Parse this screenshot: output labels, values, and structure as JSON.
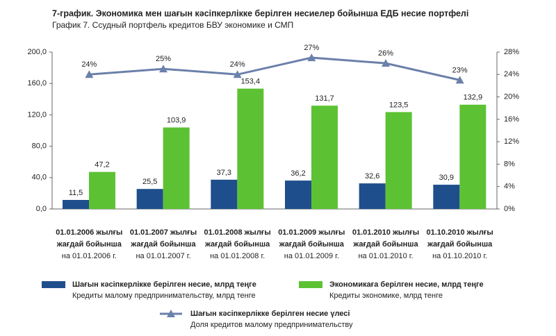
{
  "chart_data": {
    "type": "bar",
    "title": "7-график. Экономика мен шағын кәсіпкерлікке берілген несиелер бойынша ЕДБ несие портфелі",
    "subtitle": "График 7. Ссудный портфель кредитов БВУ экономике и СМП",
    "categories": [
      [
        "01.01.2006 жылғы",
        "жағдай бойынша",
        "на 01.01.2006 г."
      ],
      [
        "01.01.2007 жылғы",
        "жағдай бойынша",
        "на 01.01.2007 г."
      ],
      [
        "01.01.2008 жылғы",
        "жағдай бойынша",
        "на 01.01.2008 г."
      ],
      [
        "01.01.2009 жылғы",
        "жағдай бойынша",
        "на 01.01.2009 г."
      ],
      [
        "01.01.2010 жылғы",
        "жағдай бойынша",
        "на 01.01.2010 г."
      ],
      [
        "01.10.2010 жылғы",
        "жағдай бойынша",
        "на 01.10.2010 г."
      ]
    ],
    "series": [
      {
        "name": [
          "Шағын кәсіпкерлікке берілген несие, млрд теңге",
          "Кредиты малому предпринимательству, млрд тенге"
        ],
        "color": "#1f4e8c",
        "values": [
          11.5,
          25.5,
          37.3,
          36.2,
          32.6,
          30.9
        ],
        "value_labels": [
          "11,5",
          "25,5",
          "37,3",
          "36,2",
          "32,6",
          "30,9"
        ]
      },
      {
        "name": [
          "Экономикаға берілген несие, млрд теңге",
          "Кредиты экономике, млрд тенге"
        ],
        "color": "#5cc234",
        "values": [
          47.2,
          103.9,
          153.4,
          131.7,
          123.5,
          132.9
        ],
        "value_labels": [
          "47,2",
          "103,9",
          "153,4",
          "131,7",
          "123,5",
          "132,9"
        ]
      },
      {
        "name": [
          "Шағын кәсіпкерлікке берілген несие үлесі",
          "Доля кредитов малому предпринимательству"
        ],
        "color": "#6b80aa",
        "type": "line",
        "axis": "y2",
        "values": [
          24,
          25,
          24,
          27,
          26,
          23
        ],
        "value_labels": [
          "24%",
          "25%",
          "24%",
          "27%",
          "26%",
          "23%"
        ]
      }
    ],
    "ylim": [
      0,
      200
    ],
    "yticks": [
      {
        "value": 0,
        "label": "0,0"
      },
      {
        "value": 40,
        "label": "40,0"
      },
      {
        "value": 80,
        "label": "80,0"
      },
      {
        "value": 120,
        "label": "120,0"
      },
      {
        "value": 160,
        "label": "160,0"
      },
      {
        "value": 200,
        "label": "200,0"
      }
    ],
    "y2lim": [
      0,
      28
    ],
    "y2ticks": [
      {
        "value": 0,
        "label": "0%"
      },
      {
        "value": 4,
        "label": "4%"
      },
      {
        "value": 8,
        "label": "8%"
      },
      {
        "value": 12,
        "label": "12%"
      },
      {
        "value": 16,
        "label": "16%"
      },
      {
        "value": 20,
        "label": "20%"
      },
      {
        "value": 24,
        "label": "24%"
      },
      {
        "value": 28,
        "label": "28%"
      }
    ]
  }
}
